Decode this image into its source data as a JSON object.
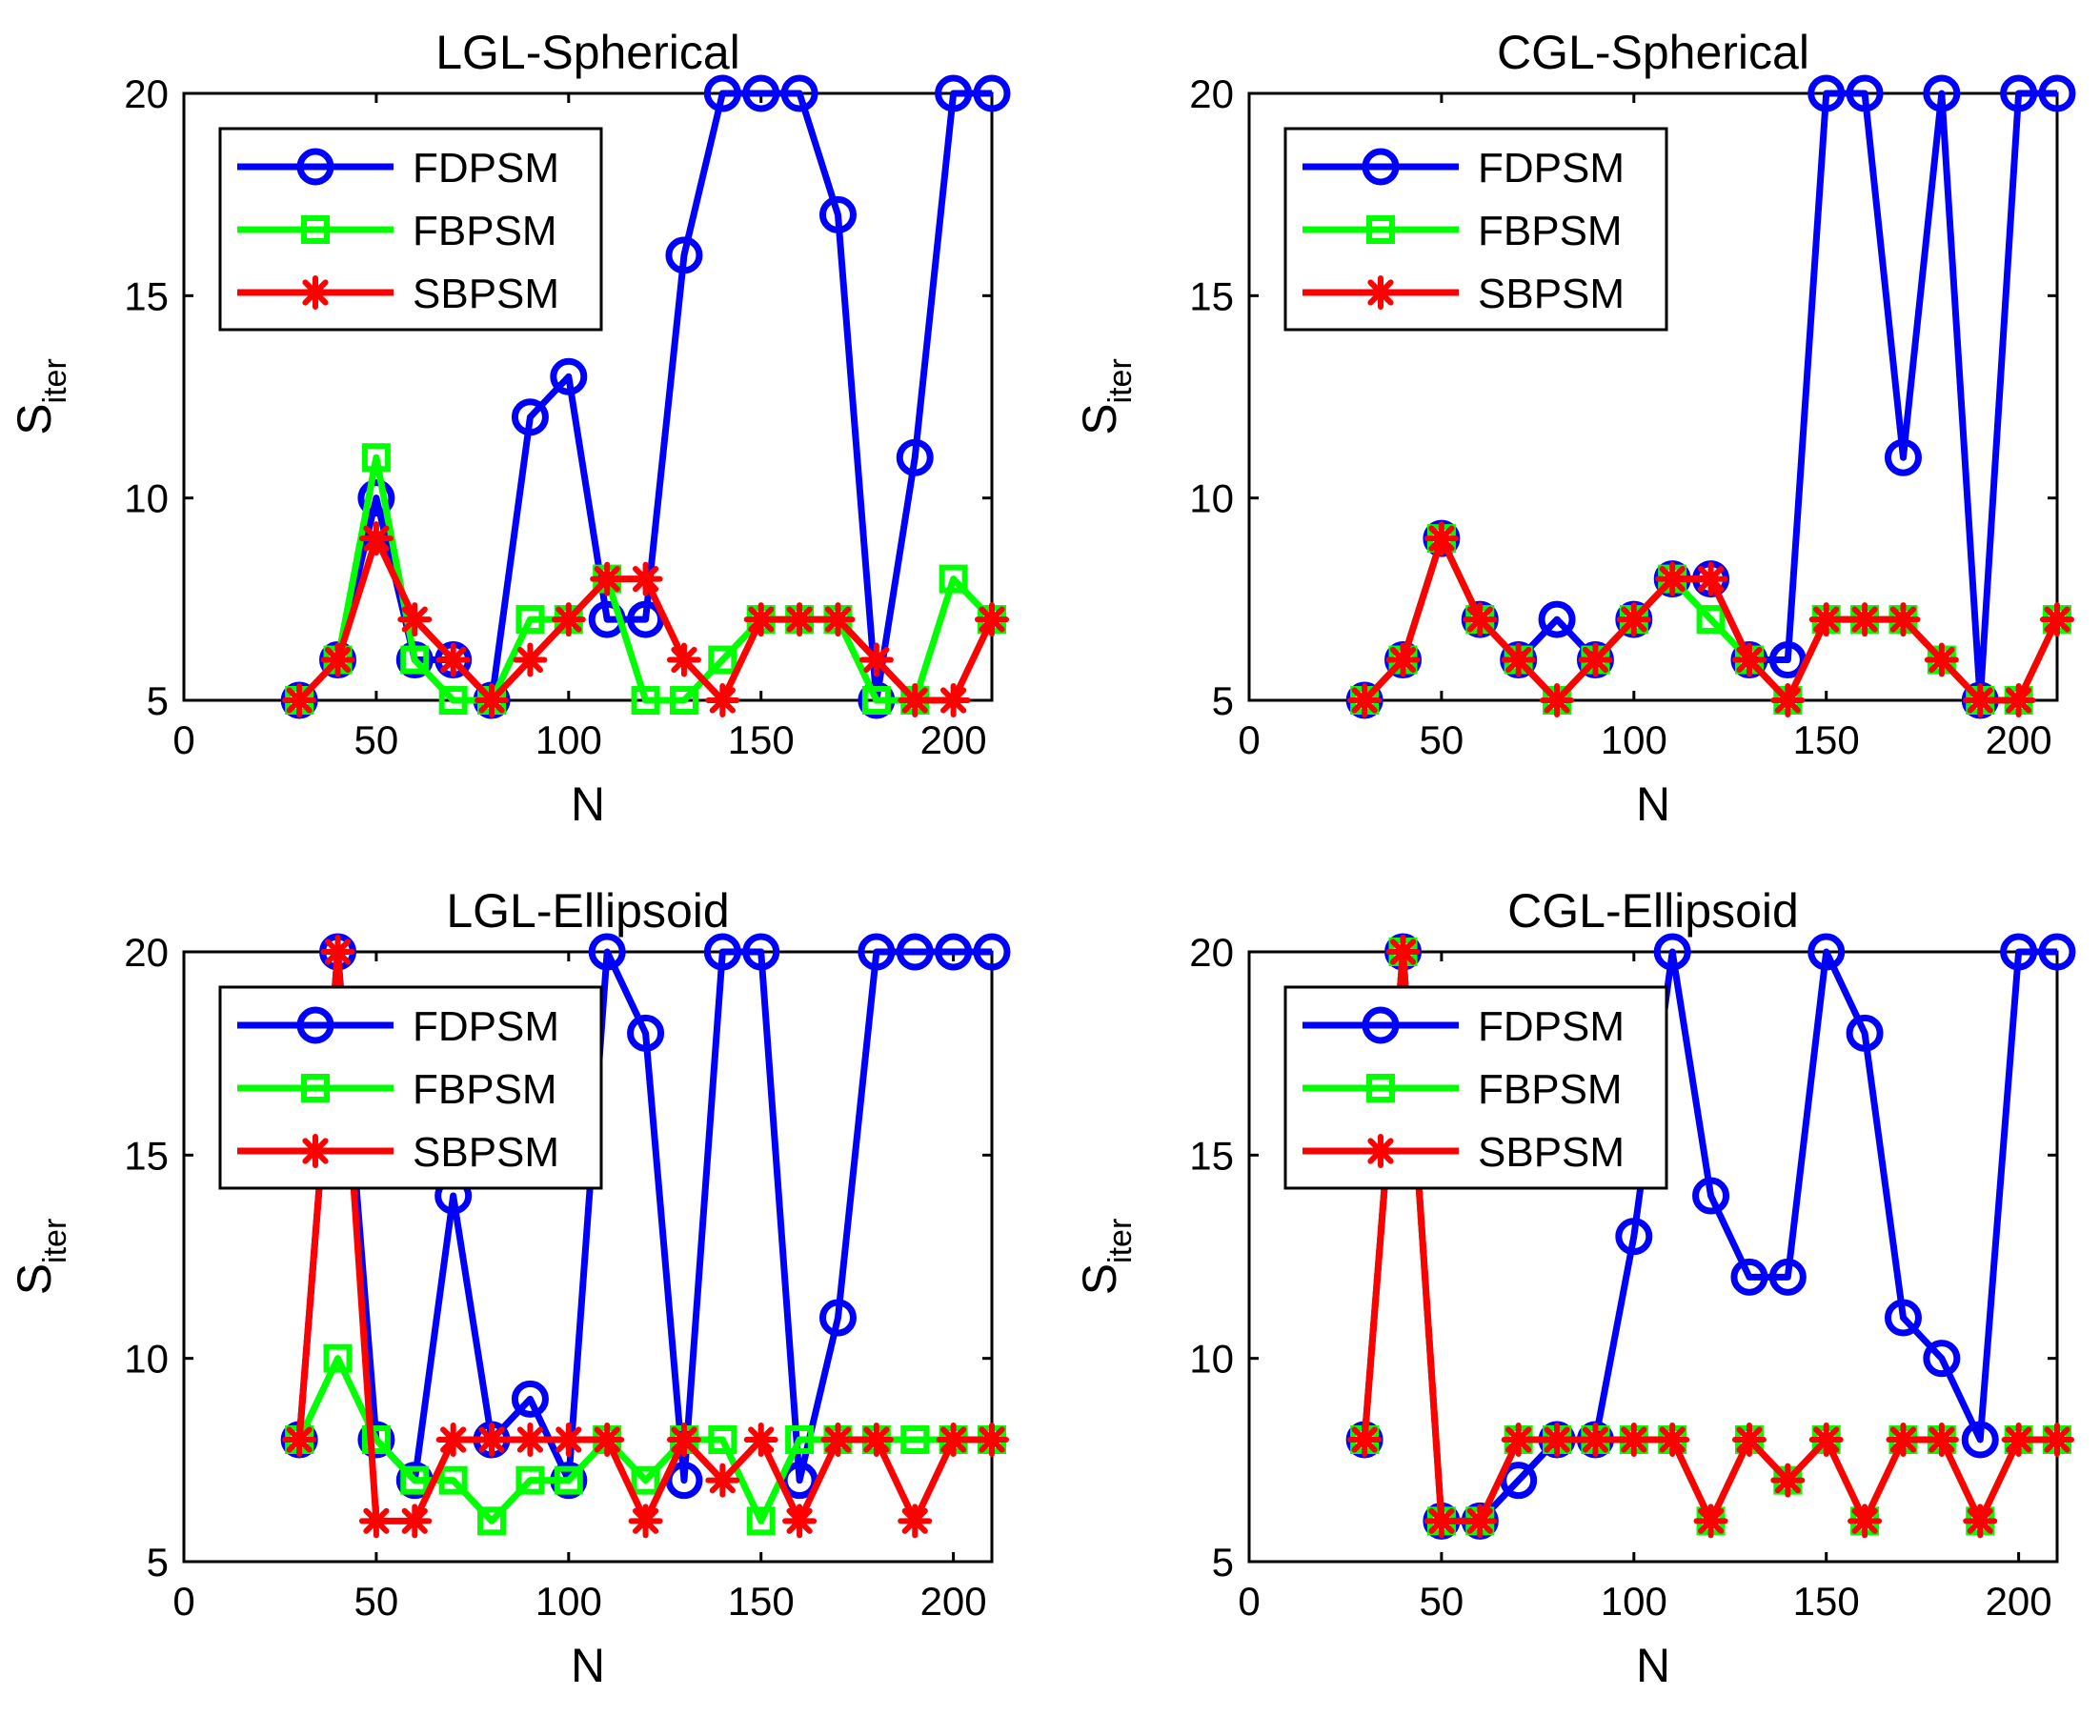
{
  "colors": {
    "FDPSM": "#0000ff",
    "FBPSM": "#00ff00",
    "SBPSM": "#ff0000"
  },
  "markers": {
    "FDPSM": "circle",
    "FBPSM": "square",
    "SBPSM": "asterisk"
  },
  "chart_data": [
    {
      "type": "line",
      "title": "LGL-Spherical",
      "xlabel": "N",
      "ylabel": {
        "main": "S",
        "sub": "iter"
      },
      "xlim": [
        0,
        210
      ],
      "ylim": [
        5,
        20
      ],
      "xticks": [
        "0",
        "50",
        "100",
        "150",
        "200"
      ],
      "yticks": [
        "5",
        "10",
        "15",
        "20"
      ],
      "legend_position": "top-left",
      "x": [
        30,
        40,
        50,
        60,
        70,
        80,
        90,
        100,
        110,
        120,
        130,
        140,
        150,
        160,
        170,
        180,
        190,
        200,
        210
      ],
      "series": [
        {
          "name": "FDPSM",
          "values": [
            5,
            6,
            10,
            6,
            6,
            5,
            12,
            13,
            7,
            7,
            16,
            20,
            20,
            20,
            17,
            5,
            11,
            20,
            20
          ]
        },
        {
          "name": "FBPSM",
          "values": [
            5,
            6,
            11,
            6,
            5,
            5,
            7,
            7,
            8,
            5,
            5,
            6,
            7,
            7,
            7,
            5,
            5,
            8,
            7
          ]
        },
        {
          "name": "SBPSM",
          "values": [
            5,
            6,
            9,
            7,
            6,
            5,
            6,
            7,
            8,
            8,
            6,
            5,
            7,
            7,
            7,
            6,
            5,
            5,
            7
          ]
        }
      ]
    },
    {
      "type": "line",
      "title": "CGL-Spherical",
      "xlabel": "N",
      "ylabel": {
        "main": "S",
        "sub": "iter"
      },
      "xlim": [
        0,
        210
      ],
      "ylim": [
        5,
        20
      ],
      "xticks": [
        "0",
        "50",
        "100",
        "150",
        "200"
      ],
      "yticks": [
        "5",
        "10",
        "15",
        "20"
      ],
      "legend_position": "top-left",
      "x": [
        30,
        40,
        50,
        60,
        70,
        80,
        90,
        100,
        110,
        120,
        130,
        140,
        150,
        160,
        170,
        180,
        190,
        200,
        210
      ],
      "series": [
        {
          "name": "FDPSM",
          "values": [
            5,
            6,
            9,
            7,
            6,
            7,
            6,
            7,
            8,
            8,
            6,
            6,
            20,
            20,
            11,
            20,
            5,
            20,
            20
          ]
        },
        {
          "name": "FBPSM",
          "values": [
            5,
            6,
            9,
            7,
            6,
            5,
            6,
            7,
            8,
            7,
            6,
            5,
            7,
            7,
            7,
            6,
            5,
            5,
            7
          ]
        },
        {
          "name": "SBPSM",
          "values": [
            5,
            6,
            9,
            7,
            6,
            5,
            6,
            7,
            8,
            8,
            6,
            5,
            7,
            7,
            7,
            6,
            5,
            5,
            7
          ]
        }
      ]
    },
    {
      "type": "line",
      "title": "LGL-Ellipsoid",
      "xlabel": "N",
      "ylabel": {
        "main": "S",
        "sub": "iter"
      },
      "xlim": [
        0,
        210
      ],
      "ylim": [
        5,
        20
      ],
      "xticks": [
        "0",
        "50",
        "100",
        "150",
        "200"
      ],
      "yticks": [
        "5",
        "10",
        "15",
        "20"
      ],
      "legend_position": "top-left",
      "x": [
        30,
        40,
        50,
        60,
        70,
        80,
        90,
        100,
        110,
        120,
        130,
        140,
        150,
        160,
        170,
        180,
        190,
        200,
        210
      ],
      "series": [
        {
          "name": "FDPSM",
          "values": [
            8,
            20,
            8,
            7,
            14,
            8,
            9,
            7,
            20,
            18,
            7,
            20,
            20,
            7,
            11,
            20,
            20,
            20,
            20
          ]
        },
        {
          "name": "FBPSM",
          "values": [
            8,
            10,
            8,
            7,
            7,
            6,
            7,
            7,
            8,
            7,
            8,
            8,
            6,
            8,
            8,
            8,
            8,
            8,
            8
          ]
        },
        {
          "name": "SBPSM",
          "values": [
            8,
            20,
            6,
            6,
            8,
            8,
            8,
            8,
            8,
            6,
            8,
            7,
            8,
            6,
            8,
            8,
            6,
            8,
            8
          ]
        }
      ]
    },
    {
      "type": "line",
      "title": "CGL-Ellipsoid",
      "xlabel": "N",
      "ylabel": {
        "main": "S",
        "sub": "iter"
      },
      "xlim": [
        0,
        210
      ],
      "ylim": [
        5,
        20
      ],
      "xticks": [
        "0",
        "50",
        "100",
        "150",
        "200"
      ],
      "yticks": [
        "5",
        "10",
        "15",
        "20"
      ],
      "legend_position": "top-left",
      "x": [
        30,
        40,
        50,
        60,
        70,
        80,
        90,
        100,
        110,
        120,
        130,
        140,
        150,
        160,
        170,
        180,
        190,
        200,
        210
      ],
      "series": [
        {
          "name": "FDPSM",
          "values": [
            8,
            20,
            6,
            6,
            7,
            8,
            8,
            13,
            20,
            14,
            12,
            12,
            20,
            18,
            11,
            10,
            8,
            20,
            20
          ]
        },
        {
          "name": "FBPSM",
          "values": [
            8,
            20,
            6,
            6,
            8,
            8,
            8,
            8,
            8,
            6,
            8,
            7,
            8,
            6,
            8,
            8,
            6,
            8,
            8
          ]
        },
        {
          "name": "SBPSM",
          "values": [
            8,
            20,
            6,
            6,
            8,
            8,
            8,
            8,
            8,
            6,
            8,
            7,
            8,
            6,
            8,
            8,
            6,
            8,
            8
          ]
        }
      ]
    }
  ]
}
